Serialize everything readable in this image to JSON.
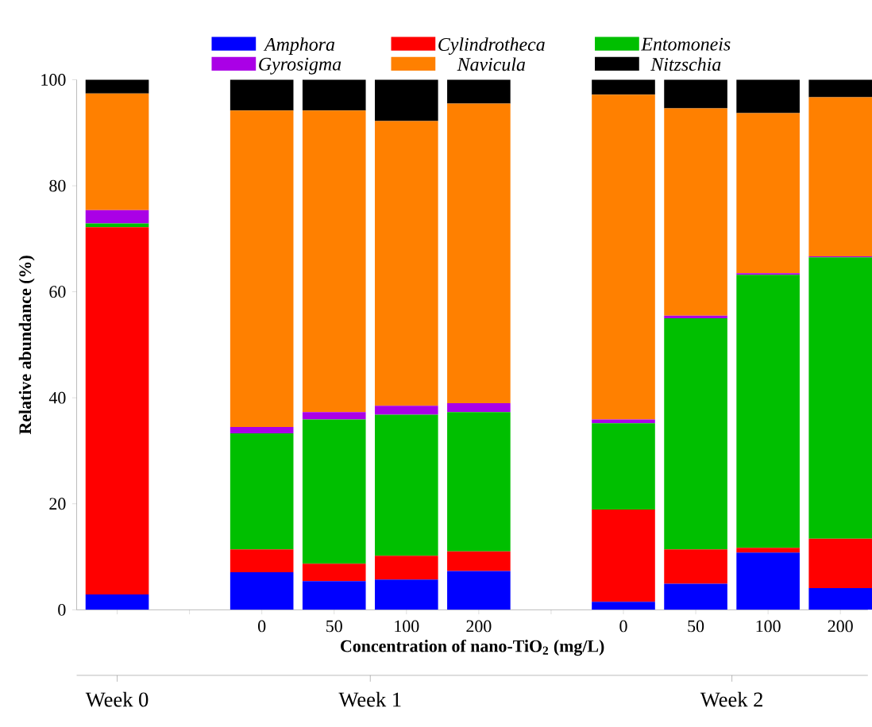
{
  "chart_data": {
    "type": "bar",
    "stacked": true,
    "categories": [
      null,
      null,
      "0",
      "50",
      "100",
      "200",
      null,
      "0",
      "50",
      "100",
      "200"
    ],
    "xlabel": "Concentration of nano-TiO$_{2}$ (mg/L)",
    "ylabel": "Relative abundance (%)",
    "ylim": [
      0,
      100
    ],
    "yticks": [
      0,
      20,
      40,
      60,
      80,
      100
    ],
    "legend": "top",
    "annotations": [
      "Week 0",
      "Week 1",
      "Week 2"
    ],
    "series": [
      {
        "name": "Amphora",
        "color": "#0000ff",
        "values": [
          2.9,
          null,
          7.1,
          5.4,
          5.7,
          7.3,
          null,
          1.5,
          4.9,
          10.8,
          4.1
        ]
      },
      {
        "name": "Cylindrotheca",
        "color": "#ff0000",
        "values": [
          69.3,
          null,
          4.3,
          3.3,
          4.5,
          3.7,
          null,
          17.4,
          6.5,
          0.9,
          9.3
        ]
      },
      {
        "name": "Entomoneis",
        "color": "#00bf00",
        "values": [
          0.7,
          null,
          21.9,
          27.2,
          26.6,
          26.3,
          null,
          16.3,
          43.6,
          51.5,
          53.1
        ]
      },
      {
        "name": "Gyrosigma",
        "color": "#aa00e6",
        "values": [
          2.5,
          null,
          1.2,
          1.4,
          1.7,
          1.7,
          null,
          0.7,
          0.5,
          0.3,
          0.2
        ]
      },
      {
        "name": "Navicula",
        "color": "#ff8000",
        "values": [
          22.0,
          null,
          59.7,
          56.9,
          53.7,
          56.5,
          null,
          61.3,
          39.1,
          30.2,
          30.0
        ]
      },
      {
        "name": "Nitzschia",
        "color": "#000000",
        "values": [
          2.6,
          null,
          5.8,
          5.8,
          7.8,
          4.5,
          null,
          2.8,
          5.4,
          6.3,
          3.3
        ]
      }
    ]
  }
}
